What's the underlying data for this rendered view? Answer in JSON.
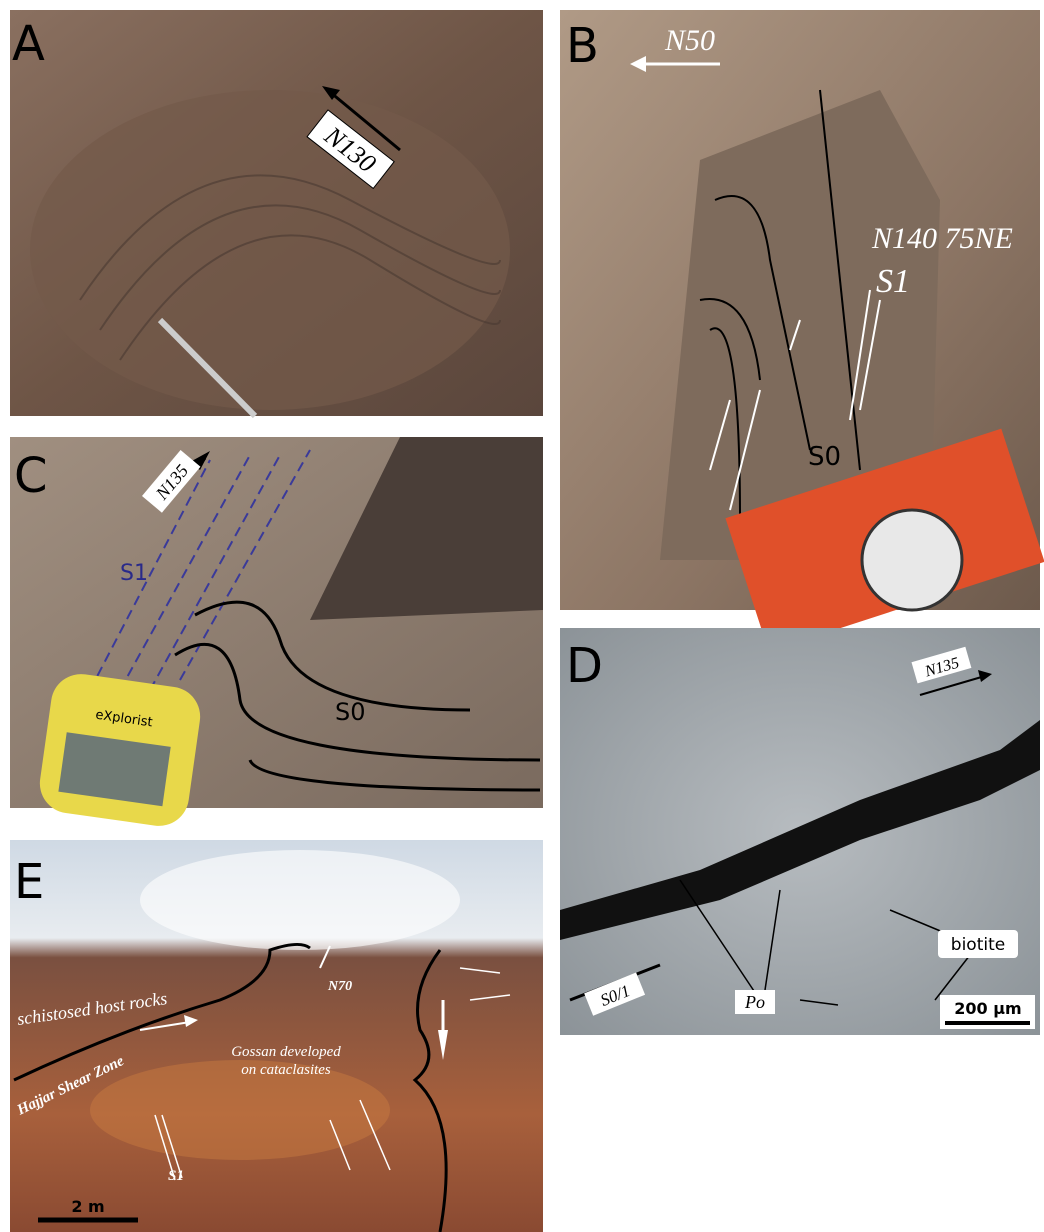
{
  "panels": [
    {
      "label": "A",
      "annotations": [
        "N130"
      ]
    },
    {
      "label": "B",
      "annotations": [
        "N50",
        "N140 75NE",
        "S1",
        "S0"
      ]
    },
    {
      "label": "C",
      "annotations": [
        "N135",
        "S1",
        "S0",
        "eXplorist"
      ]
    },
    {
      "label": "D",
      "annotations": [
        "N135",
        "S0/1",
        "Po",
        "biotite",
        "200 µm"
      ]
    },
    {
      "label": "E",
      "annotations": [
        "schistosed host rocks",
        "N70",
        "Hajjar Shear Zone",
        "S1",
        "2 m"
      ],
      "gossan": [
        "Gossan developed",
        "on cataclasites"
      ]
    }
  ]
}
